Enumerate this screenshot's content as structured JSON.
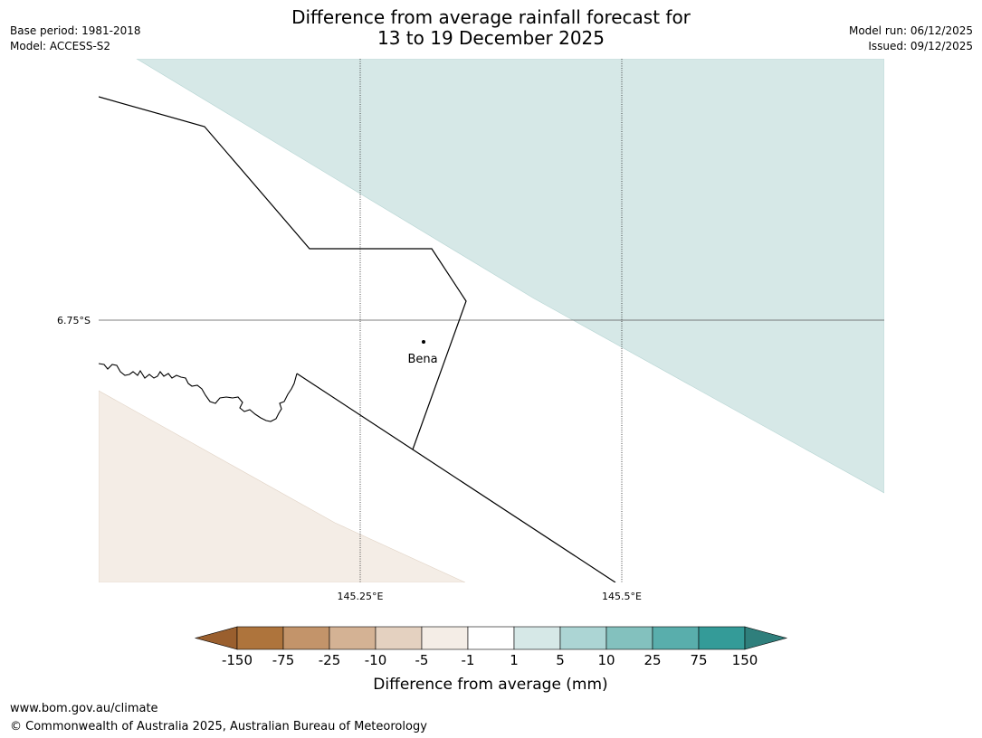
{
  "title": {
    "line1": "Difference from average rainfall forecast for",
    "line2": "13 to 19 December 2025"
  },
  "meta_left": {
    "base_period": "Base period: 1981-2018",
    "model": "Model: ACCESS-S2"
  },
  "meta_right": {
    "model_run": "Model run: 06/12/2025",
    "issued": "Issued: 09/12/2025"
  },
  "map": {
    "lat_labels": [
      "6.75°S"
    ],
    "lon_labels": [
      "145.25°E",
      "145.5°E"
    ],
    "town": {
      "name": "Bena"
    }
  },
  "legend": {
    "title": "Difference from average (mm)",
    "ticks": [
      "-150",
      "-75",
      "-25",
      "-10",
      "-5",
      "-1",
      "1",
      "5",
      "10",
      "25",
      "75",
      "150"
    ],
    "colors": [
      "#9a5f2e",
      "#ae743c",
      "#c3946a",
      "#d4b294",
      "#e4d1c0",
      "#f4ede6",
      "#ffffff",
      "#d6e8e7",
      "#acd5d4",
      "#83c1be",
      "#59aeac",
      "#349b98",
      "#2f7f7c"
    ]
  },
  "footer": {
    "url": "www.bom.gov.au/climate",
    "copyright": "© Commonwealth of Australia 2025, Australian Bureau of Meteorology"
  }
}
